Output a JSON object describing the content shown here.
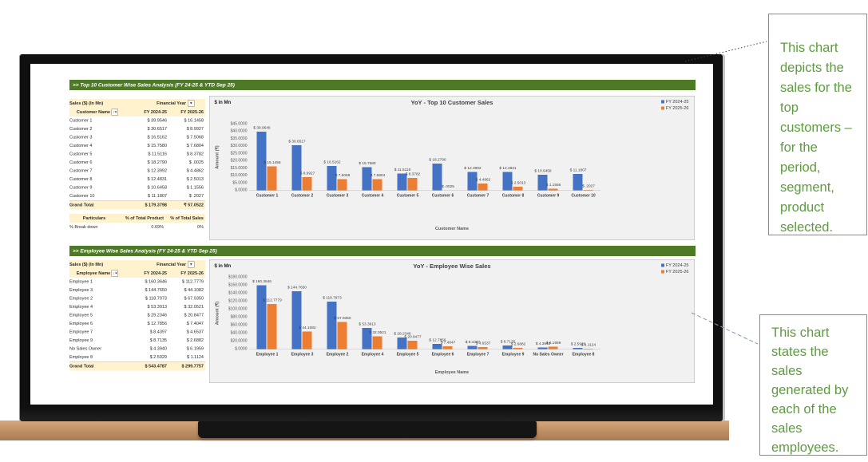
{
  "colors": {
    "band_green": "#4E7A27",
    "header_tan": "#FFF2CC",
    "annotation_green": "#5D9C3E",
    "series_blue": "#4472C4",
    "series_orange": "#ED7D31"
  },
  "annotations": {
    "box1": "This chart depicts the sales for the top customers – for the period, segment, product selected.",
    "box2": "This chart states the sales generated by each of the sales employees."
  },
  "dashboard": {
    "section1": {
      "header": ">> Top 10 Customer Wise Sales Analysis (FY 24-25 & YTD Sep 25)",
      "table": {
        "title": "Sales ($) (In Mn)",
        "filter_field": "Financial Year",
        "name_header": "Customer Name",
        "year1": "FY 2024-25",
        "year2": "FY 2025-26",
        "rows": [
          [
            "Customer 1",
            "$ 39.9546",
            "$ 16.1458"
          ],
          [
            "Customer 2",
            "$ 30.6517",
            "$ 8.9927"
          ],
          [
            "Customer 3",
            "$ 16.5162",
            "$ 7.5068"
          ],
          [
            "Customer 4",
            "$ 15.7580",
            "$ 7.6804"
          ],
          [
            "Customer 5",
            "$ 11.5116",
            "$ 8.3782"
          ],
          [
            "Customer 6",
            "$ 18.2790",
            "$ .0025"
          ],
          [
            "Customer 7",
            "$ 12.3992",
            "$ 4.4862"
          ],
          [
            "Customer 8",
            "$ 12.4831",
            "$ 2.5013"
          ],
          [
            "Customer 9",
            "$ 10.6458",
            "$ 1.1556"
          ],
          [
            "Customer 10",
            "$ 11.1807",
            "$ .2027"
          ]
        ],
        "grand_total": [
          "Grand Total",
          "$ 179.3798",
          "₹ 57.0522"
        ]
      },
      "breakdown": {
        "headers": [
          "Particulars",
          "% of Total Product",
          "% of Total Sales"
        ],
        "row": [
          "% Break down",
          "0.69%",
          "0%"
        ]
      }
    },
    "section2": {
      "header": ">> Employee Wise Sales Analysis (FY 24-25 & YTD Sep 25)",
      "table": {
        "title": "Sales ($) (In Mn)",
        "filter_field": "Financial Year",
        "name_header": "Employee Name",
        "year1": "FY 2024-25",
        "year2": "FY 2025-26",
        "rows": [
          [
            "Employee 1",
            "$ 160.3646",
            "$ 112.7779"
          ],
          [
            "Employee 3",
            "$ 144.7650",
            "$ 44.1082"
          ],
          [
            "Employee 2",
            "$ 118.7973",
            "$ 67.9350"
          ],
          [
            "Employee 4",
            "$ 53.3913",
            "$ 32.0521"
          ],
          [
            "Employee 5",
            "$ 29.2346",
            "$ 20.8477"
          ],
          [
            "Employee 6",
            "$ 12.7856",
            "$ 7.4047"
          ],
          [
            "Employee 7",
            "$ 8.4397",
            "$ 4.6537"
          ],
          [
            "Employee 9",
            "$ 8.7135",
            "$ 2.6882"
          ],
          [
            "No Sales Owner",
            "$ 4.3940",
            "$ 6.1959"
          ],
          [
            "Employee 8",
            "$ 2.5929",
            "$ 1.1124"
          ]
        ],
        "grand_total": [
          "Grand Total",
          "$ 543.4787",
          "$ 299.7757"
        ]
      }
    }
  },
  "chart_data": [
    {
      "type": "bar",
      "title": "YoY - Top 10 Customer Sales",
      "corner_label": "$ in Mn",
      "xlabel": "Customer Name",
      "ylabel": "Amount (₹)",
      "ylim": [
        0,
        45
      ],
      "ystep": 5,
      "grid": false,
      "legend_position": "top-right",
      "categories": [
        "Customer 1",
        "Customer 2",
        "Customer 3",
        "Customer 4",
        "Customer 5",
        "Customer 6",
        "Customer 7",
        "Customer 8",
        "Customer 9",
        "Customer 10"
      ],
      "series": [
        {
          "name": "FY 2024-25",
          "color": "#4472C4",
          "values": [
            39.9546,
            30.6517,
            16.5162,
            15.758,
            11.5116,
            18.279,
            12.3992,
            12.4831,
            10.6458,
            11.1807
          ]
        },
        {
          "name": "FY 2025-26",
          "color": "#ED7D31",
          "values": [
            16.1458,
            8.9927,
            7.5068,
            7.6804,
            8.3782,
            0.0025,
            4.4862,
            2.5013,
            1.1556,
            0.2027
          ]
        }
      ]
    },
    {
      "type": "bar",
      "title": "YoY - Employee Wise Sales",
      "corner_label": "$ in Mn",
      "xlabel": "Employee Name",
      "ylabel": "Amount (₹)",
      "ylim": [
        0,
        180
      ],
      "ystep": 20,
      "grid": false,
      "legend_position": "top-right",
      "categories": [
        "Employee 1",
        "Employee 3",
        "Employee 2",
        "Employee 4",
        "Employee 5",
        "Employee 6",
        "Employee 7",
        "Employee 9",
        "No Sales Owner",
        "Employee 8"
      ],
      "series": [
        {
          "name": "FY 2024-25",
          "color": "#4472C4",
          "values": [
            160.3646,
            144.765,
            118.7973,
            53.3913,
            29.2346,
            12.7856,
            8.4397,
            8.7135,
            4.394,
            2.5929
          ]
        },
        {
          "name": "FY 2025-26",
          "color": "#ED7D31",
          "values": [
            112.7779,
            44.1082,
            67.935,
            32.0521,
            20.8477,
            7.4047,
            4.6537,
            2.6882,
            6.1959,
            1.1124
          ]
        }
      ]
    }
  ]
}
